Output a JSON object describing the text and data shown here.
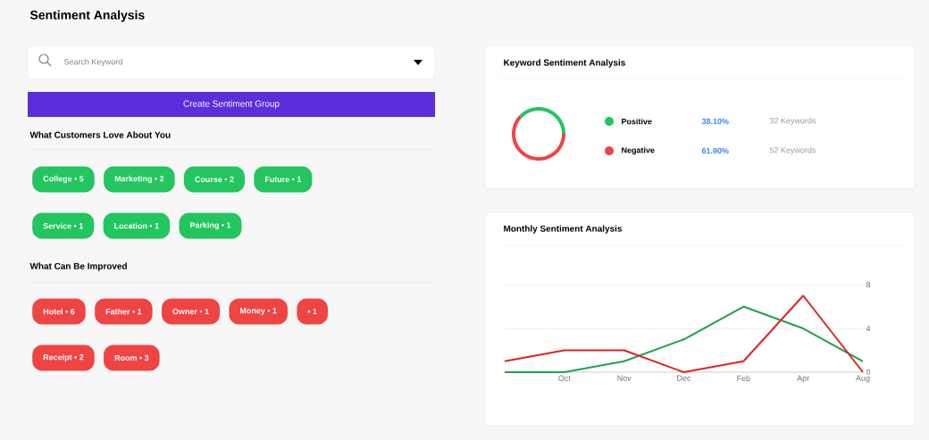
{
  "chart_data": [
    {
      "type": "other",
      "title": "Sentiment Analysis",
      "annotations": [
        "Search Keyword",
        "Create Sentiment Group"
      ]
    },
    {
      "type": "other",
      "title": "What Customers Love About You",
      "categories": [
        "College",
        "Marketing",
        "Course",
        "Future",
        "Service",
        "Location",
        "Parking"
      ],
      "values": [
        5,
        2,
        2,
        1,
        1,
        1,
        1
      ],
      "value_labels": [
        "• 5",
        "• 2",
        "• 2",
        "• 1",
        "• 1",
        "• 1",
        "• 1"
      ],
      "color": "#22c55e"
    },
    {
      "type": "other",
      "title": "What Can Be Improved",
      "categories": [
        "Hotel",
        "Father",
        "Owner",
        "Money",
        null,
        "Receipt",
        "Room"
      ],
      "values": [
        6,
        1,
        1,
        1,
        1,
        2,
        3
      ],
      "value_labels": [
        "• 6",
        "• 1",
        "• 1",
        "• 1",
        "• 1",
        "• 2",
        "• 3"
      ],
      "color": "#ef4444"
    },
    {
      "type": "donut",
      "title": "Keyword Sentiment Analysis",
      "categories": [
        "Positive",
        "Negative"
      ],
      "values": [
        38.1,
        61.9
      ],
      "colors": [
        "#22c55e",
        "#ef4444"
      ],
      "value_labels": [
        "38.10%",
        "61.90%"
      ],
      "annotations": [
        "32 Keywords",
        "52 Keywords"
      ],
      "legend": "right"
    },
    {
      "type": "line",
      "title": "Monthly Sentiment Analysis",
      "categories": [
        null,
        "Oct",
        "Nov",
        "Dec",
        "Feb",
        "Apr",
        "Aug"
      ],
      "ylim": [
        0,
        8
      ],
      "yticks": [
        0,
        4,
        8
      ],
      "grid": "y",
      "legend": false,
      "marker": "none",
      "line_style": "solid",
      "series": [
        {
          "color": "#1ea34a",
          "values": [
            0,
            0,
            1,
            3,
            6,
            4,
            1
          ]
        },
        {
          "color": "#e02424",
          "values": [
            1,
            2,
            2,
            0,
            1,
            7,
            0
          ]
        }
      ]
    }
  ]
}
